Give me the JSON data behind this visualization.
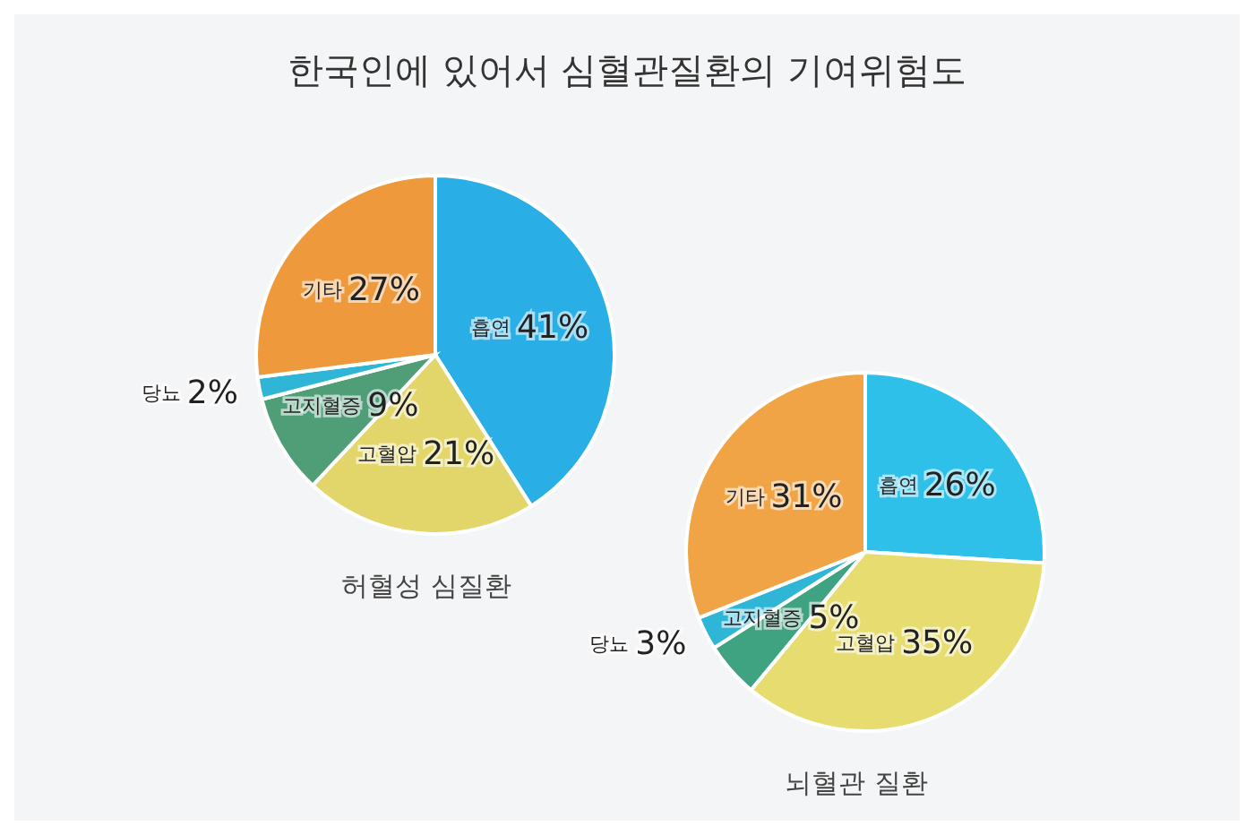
{
  "chart_data": [
    {
      "type": "pie",
      "title": "한국인에 있어서 심혈관질환의 기여위험도",
      "subtitle": "허혈성 심질환",
      "categories": [
        "흡연",
        "고혈압",
        "고지혈증",
        "당뇨",
        "기타"
      ],
      "values": [
        41,
        21,
        9,
        2,
        27
      ],
      "value_labels": [
        "41%",
        "21%",
        "9%",
        "2%",
        "27%"
      ],
      "colors": [
        "#2aaee6",
        "#e2d66a",
        "#4f9e78",
        "#2fb6d6",
        "#ee9a3c"
      ],
      "data_labels": true,
      "legend": false
    },
    {
      "type": "pie",
      "subtitle": "뇌혈관 질환",
      "categories": [
        "흡연",
        "고혈압",
        "고지혈증",
        "당뇨",
        "기타"
      ],
      "values": [
        26,
        35,
        5,
        3,
        31
      ],
      "value_labels": [
        "26%",
        "35%",
        "5%",
        "3%",
        "31%"
      ],
      "colors": [
        "#2fc0ea",
        "#e6dc70",
        "#3fa382",
        "#2fb6d6",
        "#f0a446"
      ],
      "data_labels": true,
      "legend": false
    }
  ]
}
